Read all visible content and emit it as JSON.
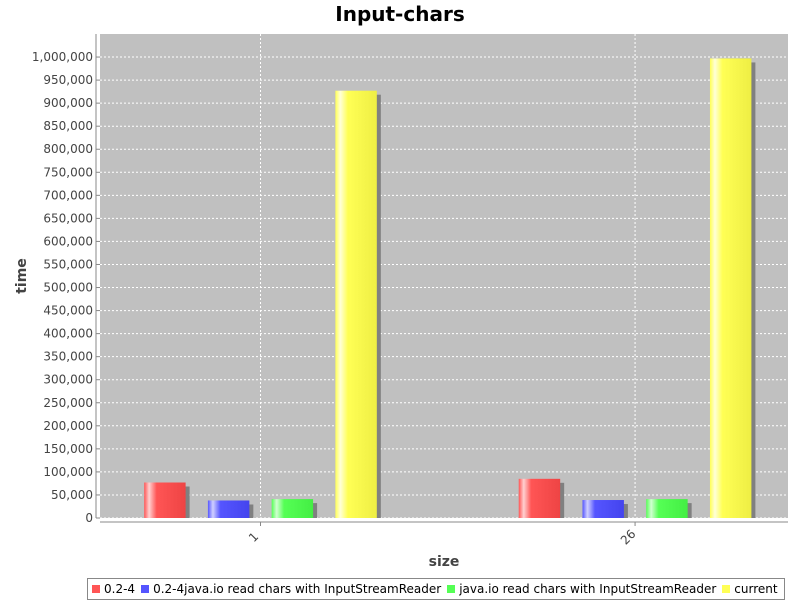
{
  "chart_data": {
    "type": "bar",
    "title": "Input-chars",
    "xlabel": "size",
    "ylabel": "time",
    "categories": [
      "1",
      "26"
    ],
    "series": [
      {
        "name": "0.2-4",
        "color": "#ff5555",
        "values": [
          77000,
          85000
        ]
      },
      {
        "name": "0.2-4java.io read chars with InputStreamReader",
        "color": "#5555ff",
        "values": [
          38000,
          39000
        ]
      },
      {
        "name": "java.io read chars with InputStreamReader",
        "color": "#55ff55",
        "values": [
          41000,
          41000
        ]
      },
      {
        "name": "current",
        "color": "#ffff55",
        "values": [
          927000,
          997000
        ]
      }
    ],
    "ylim": [
      0,
      1050000
    ],
    "yticks": [
      0,
      50000,
      100000,
      150000,
      200000,
      250000,
      300000,
      350000,
      400000,
      450000,
      500000,
      550000,
      600000,
      650000,
      700000,
      750000,
      800000,
      850000,
      900000,
      950000,
      1000000
    ],
    "ytick_labels": [
      "0",
      "50,000",
      "100,000",
      "150,000",
      "200,000",
      "250,000",
      "300,000",
      "350,000",
      "400,000",
      "450,000",
      "500,000",
      "550,000",
      "600,000",
      "650,000",
      "700,000",
      "750,000",
      "800,000",
      "850,000",
      "900,000",
      "950,000",
      "1,000,000"
    ],
    "grid": true,
    "legend_position": "bottom",
    "plot_background": "#c0c0c0"
  }
}
